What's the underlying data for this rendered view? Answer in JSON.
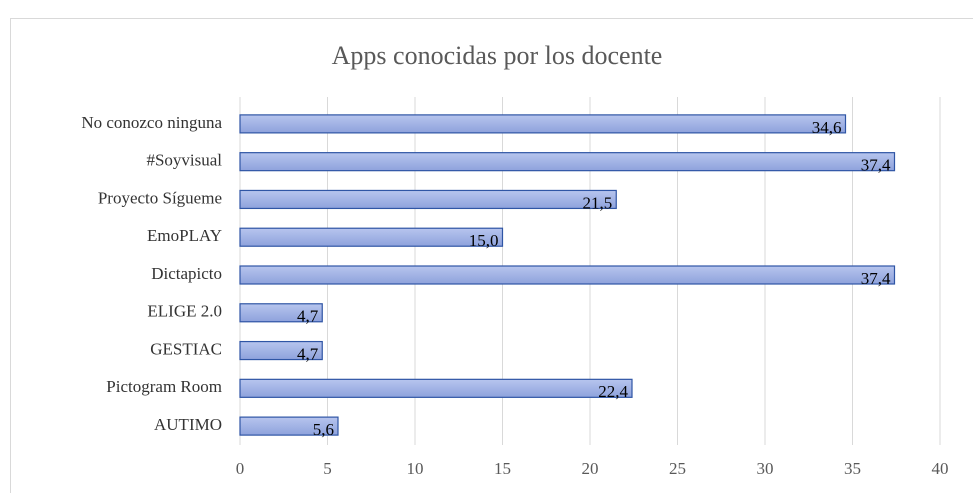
{
  "chart_data": {
    "type": "bar",
    "orientation": "horizontal",
    "title": "Apps conocidas por los docente",
    "categories": [
      "No conozco ninguna",
      "#Soyvisual",
      "Proyecto Sígueme",
      "EmoPLAY",
      "Dictapicto",
      "ELIGE 2.0",
      "GESTIAC",
      "Pictogram Room",
      "AUTIMO"
    ],
    "values": [
      34.6,
      37.4,
      21.5,
      15.0,
      37.4,
      4.7,
      4.7,
      22.4,
      5.6
    ],
    "value_labels": [
      "34,6",
      "37,4",
      "21,5",
      "15,0",
      "37,4",
      "4,7",
      "4,7",
      "22,4",
      "5,6"
    ],
    "color": "#9fb2e6",
    "xlim": [
      0,
      40
    ],
    "xticks": [
      0,
      5,
      10,
      15,
      20,
      25,
      30,
      35,
      40
    ],
    "grid": true
  }
}
